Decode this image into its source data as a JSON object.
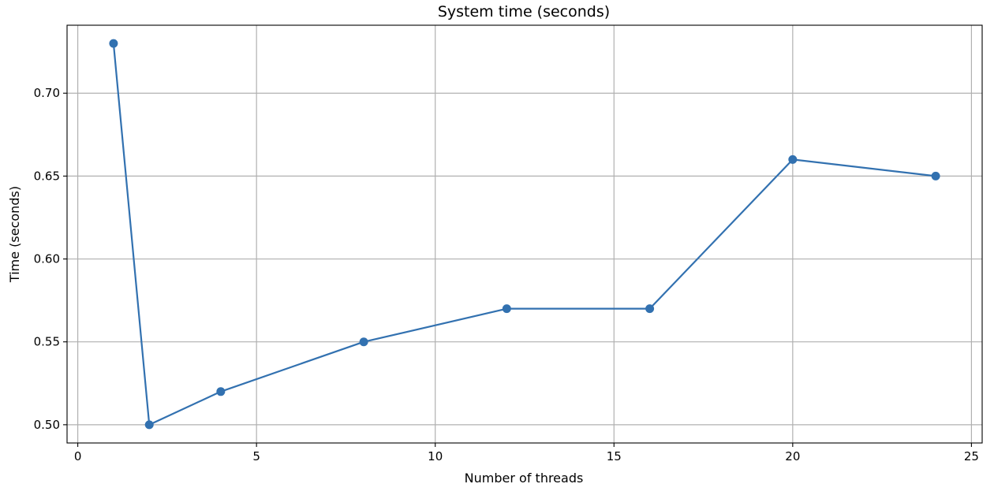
{
  "chart_data": {
    "type": "line",
    "title": "System time (seconds)",
    "xlabel": "Number of threads",
    "ylabel": "Time (seconds)",
    "xlim": [
      -0.3,
      25.3
    ],
    "ylim": [
      0.489,
      0.741
    ],
    "xticks": [
      0,
      5,
      10,
      15,
      20,
      25
    ],
    "yticks": [
      0.5,
      0.55,
      0.6,
      0.65,
      0.7
    ],
    "xtick_labels": [
      "0",
      "5",
      "10",
      "15",
      "20",
      "25"
    ],
    "ytick_labels": [
      "0.50",
      "0.55",
      "0.60",
      "0.65",
      "0.70"
    ],
    "grid": true,
    "series": [
      {
        "color": "#3271b0",
        "marker": "circle",
        "x": [
          1,
          2,
          4,
          8,
          12,
          16,
          20,
          24
        ],
        "y": [
          0.73,
          0.5,
          0.52,
          0.55,
          0.57,
          0.57,
          0.66,
          0.65
        ]
      }
    ]
  }
}
